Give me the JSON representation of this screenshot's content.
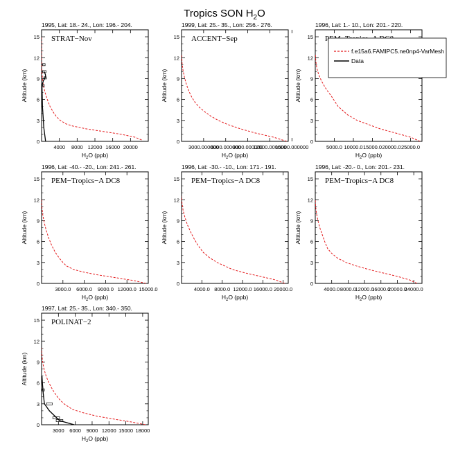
{
  "figure": {
    "title_main": "Tropics SON H",
    "title_sub": "2",
    "title_end": "O",
    "xlabel_main": "H",
    "xlabel_sub": "2",
    "xlabel_end": "O (ppb)",
    "ylabel": "Altitude (km)"
  },
  "legend": {
    "model": "f.e15a6.FAMIPC5.ne0np4-VarMesh",
    "data": "Data"
  },
  "colors": {
    "model": "#e41a1c",
    "data": "#000000"
  },
  "chart_data": [
    {
      "type": "line",
      "title": "1995, Lat: 18.- 24., Lon: 196.- 204.",
      "campaign": "STRAT−Nov",
      "xlim": [
        0,
        24000
      ],
      "ylim": [
        0,
        16
      ],
      "xticks": [
        4000,
        8000,
        12000,
        16000,
        20000
      ],
      "xtick_labels": [
        "4000",
        "8000",
        "12000",
        "16000",
        "20000"
      ],
      "yticks": [
        0,
        3,
        6,
        9,
        12,
        15
      ],
      "ytick_labels": [
        "0",
        "3",
        "6",
        "9",
        "12",
        "15"
      ],
      "series": [
        {
          "kind": "model",
          "x": [
            22500,
            21000,
            18000,
            14000,
            10000,
            7000,
            5500,
            4200,
            3400,
            2600,
            1900,
            1300,
            800,
            400,
            200,
            80,
            30,
            10,
            5
          ],
          "y": [
            0.2,
            0.6,
            1.0,
            1.4,
            1.8,
            2.2,
            2.5,
            3.0,
            3.5,
            4.2,
            5.0,
            6.0,
            7.0,
            8.0,
            9.0,
            10.0,
            11.0,
            12.0,
            15.0
          ]
        },
        {
          "kind": "data",
          "x": [
            900,
            700,
            500,
            400,
            200,
            100,
            400,
            800,
            900,
            600
          ],
          "y": [
            0.0,
            1.0,
            2.0,
            3.0,
            5.0,
            8.0,
            8.7,
            9.1,
            9.5,
            10.0
          ],
          "err": [
            [
              400,
              8.0,
              200
            ],
            [
              800,
              9.1,
              300
            ],
            [
              600,
              10.0,
              400
            ],
            [
              500,
              11.0,
              300
            ]
          ]
        }
      ]
    },
    {
      "type": "line",
      "title": "1999, Lat: 25.- 35., Lon: 256.- 276.",
      "campaign": "ACCENT−Sep",
      "xlim": [
        0,
        14500
      ],
      "ylim": [
        0,
        16
      ],
      "xticks": [
        3000,
        6000,
        9000,
        12000,
        15000
      ],
      "xtick_labels": [
        "3000.000000",
        "6000.000000",
        "9000.000000",
        "12000.000000",
        "15000.000000"
      ],
      "yticks": [
        0,
        3,
        6,
        9,
        12,
        15
      ],
      "ytick_labels": [
        "0",
        "3",
        "6",
        "9",
        "12",
        "15"
      ],
      "series": [
        {
          "kind": "model",
          "x": [
            14300,
            12500,
            10000,
            8000,
            6300,
            5000,
            4000,
            3200,
            2500,
            1900,
            1400,
            1000,
            650,
            400,
            200,
            80,
            20
          ],
          "y": [
            0.0,
            0.6,
            1.2,
            1.8,
            2.4,
            3.0,
            3.6,
            4.2,
            4.8,
            5.5,
            6.3,
            7.2,
            8.2,
            9.2,
            10.2,
            11.2,
            12.5
          ]
        }
      ]
    },
    {
      "type": "line",
      "title": "1996, Lat: 1.- 10., Lon: 201.- 220.",
      "campaign": "PEM−Tropics−A DC8",
      "xlim": [
        0,
        28000
      ],
      "ylim": [
        0,
        16
      ],
      "xticks": [
        5000,
        10000,
        15000,
        20000,
        25000
      ],
      "xtick_labels": [
        "5000.0",
        "10000.0",
        "15000.0",
        "20000.0",
        "25000.0"
      ],
      "yticks": [
        0,
        3,
        6,
        9,
        12,
        15
      ],
      "ytick_labels": [
        "0",
        "3",
        "6",
        "9",
        "12",
        "15"
      ],
      "series": [
        {
          "kind": "model",
          "x": [
            27500,
            25000,
            21000,
            17000,
            14000,
            11000,
            8500,
            6000,
            4800,
            4200,
            3500,
            2500,
            1600,
            900,
            400,
            150,
            30
          ],
          "y": [
            0.0,
            0.6,
            1.2,
            1.8,
            2.4,
            3.0,
            3.8,
            5.0,
            6.0,
            6.5,
            7.0,
            7.8,
            8.7,
            9.6,
            10.5,
            11.5,
            12.5
          ]
        }
      ]
    },
    {
      "type": "line",
      "title": "1996, Lat: -40.- -20., Lon: 241.- 261.",
      "campaign": "PEM−Tropics−A DC8",
      "xlim": [
        0,
        15000
      ],
      "ylim": [
        0,
        16
      ],
      "xticks": [
        3000,
        6000,
        9000,
        12000,
        15000
      ],
      "xtick_labels": [
        "3000.0",
        "6000.0",
        "9000.0",
        "12000.0",
        "15000.0"
      ],
      "yticks": [
        0,
        3,
        6,
        9,
        12,
        15
      ],
      "ytick_labels": [
        "0",
        "3",
        "6",
        "9",
        "12",
        "15"
      ],
      "series": [
        {
          "kind": "model",
          "x": [
            14700,
            13000,
            10500,
            8000,
            6000,
            4500,
            3500,
            3000,
            2500,
            1900,
            1400,
            1000,
            650,
            380,
            180,
            60,
            15
          ],
          "y": [
            0.0,
            0.4,
            0.8,
            1.2,
            1.6,
            2.0,
            2.5,
            3.0,
            3.6,
            4.5,
            5.5,
            6.5,
            7.6,
            8.7,
            9.8,
            10.8,
            12.0
          ]
        }
      ]
    },
    {
      "type": "line",
      "title": "1996, Lat: -30.- -10., Lon: 171.- 191.",
      "campaign": "PEM−Tropics−A DC8",
      "xlim": [
        0,
        21000
      ],
      "ylim": [
        0,
        16
      ],
      "xticks": [
        4000,
        8000,
        12000,
        16000,
        20000
      ],
      "xtick_labels": [
        "4000.0",
        "8000.0",
        "12000.0",
        "16000.0",
        "20000.0"
      ],
      "yticks": [
        0,
        3,
        6,
        9,
        12,
        15
      ],
      "ytick_labels": [
        "0",
        "3",
        "6",
        "9",
        "12",
        "15"
      ],
      "series": [
        {
          "kind": "model",
          "x": [
            20300,
            18500,
            15500,
            12500,
            10000,
            8500,
            7000,
            5500,
            4200,
            3200,
            2400,
            1700,
            1100,
            650,
            300,
            100,
            20
          ],
          "y": [
            0.0,
            0.5,
            1.0,
            1.5,
            2.0,
            2.5,
            3.0,
            3.7,
            4.5,
            5.5,
            6.5,
            7.5,
            8.5,
            9.5,
            10.5,
            11.5,
            12.5
          ]
        }
      ]
    },
    {
      "type": "line",
      "title": "1996, Lat: -20.- 0., Lon: 201.- 231.",
      "campaign": "PEM−Tropics−A DC8",
      "xlim": [
        0,
        26000
      ],
      "ylim": [
        0,
        16
      ],
      "xticks": [
        4000,
        8000,
        12000,
        16000,
        20000,
        24000
      ],
      "xtick_labels": [
        "4000.0",
        "8000.0",
        "12000.0",
        "16000.0",
        "20000.0",
        "24000.0"
      ],
      "yticks": [
        0,
        3,
        6,
        9,
        12,
        15
      ],
      "ytick_labels": [
        "0",
        "3",
        "6",
        "9",
        "12",
        "15"
      ],
      "series": [
        {
          "kind": "model",
          "x": [
            24800,
            23000,
            20000,
            16500,
            13000,
            10000,
            7500,
            5500,
            4000,
            3000,
            2300,
            1700,
            1100,
            650,
            300,
            100,
            20
          ],
          "y": [
            0.0,
            0.5,
            1.0,
            1.5,
            2.0,
            2.5,
            3.0,
            3.6,
            4.3,
            5.0,
            6.0,
            7.0,
            8.0,
            9.0,
            10.0,
            11.0,
            12.0
          ]
        }
      ]
    },
    {
      "type": "line",
      "title": "1997, Lat: 25.- 35., Lon: 340.- 350.",
      "campaign": "POLINAT−2",
      "xlim": [
        0,
        19000
      ],
      "ylim": [
        0,
        16
      ],
      "xticks": [
        3000,
        6000,
        9000,
        12000,
        15000,
        18000
      ],
      "xtick_labels": [
        "3000",
        "6000",
        "9000",
        "12000",
        "15000",
        "18000"
      ],
      "yticks": [
        0,
        3,
        6,
        9,
        12,
        15
      ],
      "ytick_labels": [
        "0",
        "3",
        "6",
        "9",
        "12",
        "15"
      ],
      "series": [
        {
          "kind": "model",
          "x": [
            18500,
            16000,
            13000,
            10000,
            7500,
            5500,
            4000,
            3000,
            2300,
            1700,
            1200,
            800,
            500,
            280,
            140,
            50,
            15
          ],
          "y": [
            0.0,
            0.4,
            0.8,
            1.2,
            1.7,
            2.2,
            3.0,
            3.8,
            4.6,
            5.4,
            6.2,
            7.0,
            7.8,
            8.6,
            9.4,
            10.2,
            11.0
          ]
        },
        {
          "kind": "data",
          "x": [
            5800,
            3200,
            1400,
            500,
            300,
            150,
            80
          ],
          "y": [
            0.0,
            0.6,
            2.0,
            3.0,
            4.5,
            6.0,
            7.0
          ],
          "err": [
            [
              3200,
              0.6,
              600
            ],
            [
              2600,
              1.0,
              600
            ],
            [
              1400,
              3.0,
              500
            ],
            [
              300,
              5.0,
              200
            ]
          ]
        }
      ]
    }
  ]
}
